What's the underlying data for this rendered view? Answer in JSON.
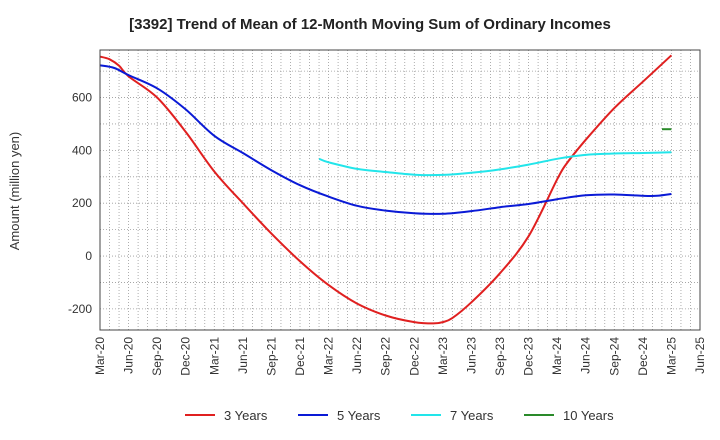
{
  "chart_data": {
    "type": "line",
    "title": "[3392]  Trend of Mean of 12-Month Moving Sum of Ordinary Incomes",
    "xlabel": "",
    "ylabel": "Amount (million yen)",
    "ylim": [
      -280,
      780
    ],
    "yticks": [
      -200,
      0,
      200,
      400,
      600
    ],
    "grid": true,
    "legend_position": "bottom",
    "x_labels": [
      "Mar-20",
      "Jun-20",
      "Sep-20",
      "Dec-20",
      "Mar-21",
      "Jun-21",
      "Sep-21",
      "Dec-21",
      "Mar-22",
      "Jun-22",
      "Sep-22",
      "Dec-22",
      "Mar-23",
      "Jun-23",
      "Sep-23",
      "Dec-23",
      "Mar-24",
      "Jun-24",
      "Sep-24",
      "Dec-24",
      "Mar-25",
      "Jun-25"
    ],
    "series": [
      {
        "name": "3 Years",
        "color": "#e02020",
        "points": [
          [
            0,
            755
          ],
          [
            0.33,
            745
          ],
          [
            0.67,
            720
          ],
          [
            1,
            680
          ],
          [
            2,
            600
          ],
          [
            3,
            470
          ],
          [
            4,
            320
          ],
          [
            5,
            200
          ],
          [
            6,
            85
          ],
          [
            7,
            -20
          ],
          [
            8,
            -110
          ],
          [
            9,
            -180
          ],
          [
            10,
            -225
          ],
          [
            11,
            -250
          ],
          [
            11.67,
            -255
          ],
          [
            12,
            -250
          ],
          [
            12.33,
            -235
          ],
          [
            13,
            -175
          ],
          [
            14,
            -65
          ],
          [
            15,
            75
          ],
          [
            16,
            290
          ],
          [
            16.33,
            350
          ],
          [
            17,
            440
          ],
          [
            18,
            560
          ],
          [
            19,
            660
          ],
          [
            20,
            760
          ]
        ]
      },
      {
        "name": "5 Years",
        "color": "#0a1ad6",
        "points": [
          [
            0,
            722
          ],
          [
            0.5,
            712
          ],
          [
            1,
            685
          ],
          [
            2,
            635
          ],
          [
            3,
            555
          ],
          [
            4,
            455
          ],
          [
            5,
            390
          ],
          [
            6,
            325
          ],
          [
            7,
            268
          ],
          [
            8,
            225
          ],
          [
            9,
            190
          ],
          [
            10,
            172
          ],
          [
            11,
            162
          ],
          [
            12,
            160
          ],
          [
            13,
            170
          ],
          [
            14,
            185
          ],
          [
            15,
            197
          ],
          [
            16,
            215
          ],
          [
            17,
            230
          ],
          [
            18,
            233
          ],
          [
            19,
            228
          ],
          [
            19.5,
            228
          ],
          [
            20,
            235
          ]
        ]
      },
      {
        "name": "7 Years",
        "color": "#22e5ea",
        "points": [
          [
            7.67,
            368
          ],
          [
            8,
            355
          ],
          [
            9,
            330
          ],
          [
            10,
            318
          ],
          [
            11,
            308
          ],
          [
            12,
            307
          ],
          [
            13,
            315
          ],
          [
            14,
            328
          ],
          [
            15,
            346
          ],
          [
            16,
            368
          ],
          [
            17,
            383
          ],
          [
            18,
            388
          ],
          [
            19,
            390
          ],
          [
            20,
            393
          ]
        ]
      },
      {
        "name": "10 Years",
        "color": "#2a8a2a",
        "points": [
          [
            19.67,
            480
          ],
          [
            20,
            480
          ]
        ]
      }
    ]
  }
}
